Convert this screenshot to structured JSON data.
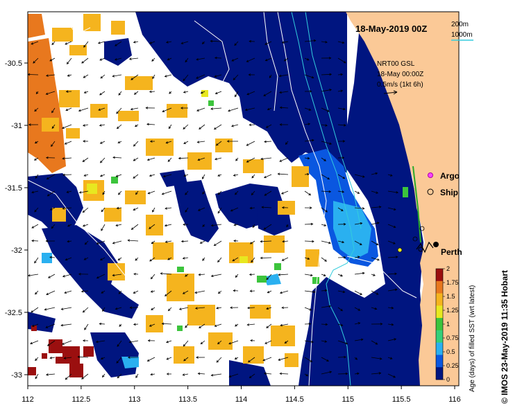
{
  "header": {
    "title": "18-May-2019 00Z",
    "isobath_200": "200m",
    "isobath_1000": "1000m"
  },
  "current_info": {
    "line1": "NRT00 GSL",
    "line2": "18-May 00:00Z",
    "line3": "0.5m/s (1kt 6h)"
  },
  "legend_markers": {
    "argo": "Argo",
    "ship": "Ship"
  },
  "city": {
    "name": "Perth"
  },
  "colorbar": {
    "label": "Age (days) of filled SST (wrt latest)",
    "ticks": [
      "0",
      "0.25",
      "0.5",
      "0.75",
      "1",
      "1.25",
      "1.5",
      "1.75",
      "2"
    ],
    "colors": [
      "#001580",
      "#0a57e0",
      "#2ab0f0",
      "#33d07a",
      "#3cc43c",
      "#e8e820",
      "#f5b41e",
      "#e8781e",
      "#9b0f0f"
    ]
  },
  "axes": {
    "x_ticks": [
      "112",
      "112.5",
      "113",
      "113.5",
      "114",
      "114.5",
      "115",
      "115.5",
      "116"
    ],
    "y_ticks": [
      "-30.5",
      "-31",
      "-31.5",
      "-32",
      "-32.5",
      "-33"
    ]
  },
  "credit": "© IMOS 23-May-2019 11:35 Hobart",
  "colors": {
    "land": "#fbc997",
    "ocean_recent": "#001580",
    "cloud": "#ffffff",
    "isobath_200": "#33ccdd",
    "isobath_1000": "#ffffff"
  }
}
